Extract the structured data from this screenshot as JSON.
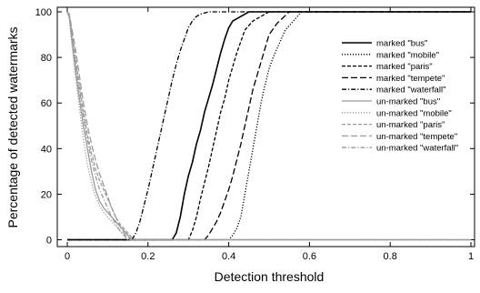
{
  "chart_data": {
    "type": "line",
    "title": "",
    "xlabel": "Detection threshold",
    "ylabel": "Percentage of detected watermarks",
    "xlim": [
      0,
      1
    ],
    "ylim": [
      -3,
      102
    ],
    "x_ticks": [
      0,
      0.2,
      0.4,
      0.6,
      0.8,
      1
    ],
    "x_tick_labels": [
      "0",
      "0.2",
      "0.4",
      "0.6",
      "0.8",
      "1"
    ],
    "y_ticks": [
      0,
      20,
      40,
      60,
      80,
      100
    ],
    "y_tick_labels": [
      "0",
      "20",
      "40",
      "60",
      "80",
      "100"
    ],
    "grid": false,
    "legend_position": "right",
    "series": [
      {
        "name": "marked \"bus\"",
        "color": "#000000",
        "dash": "solid",
        "x": [
          0,
          0.26,
          0.27,
          0.28,
          0.29,
          0.3,
          0.31,
          0.32,
          0.33,
          0.34,
          0.35,
          0.36,
          0.37,
          0.38,
          0.39,
          0.4,
          0.41,
          0.42,
          0.43,
          0.45,
          1.0
        ],
        "y": [
          0,
          0,
          3,
          10,
          20,
          28,
          34,
          42,
          48,
          56,
          62,
          68,
          75,
          82,
          88,
          93,
          96,
          97,
          98,
          100,
          100
        ]
      },
      {
        "name": "marked \"mobile\"",
        "color": "#000000",
        "dash": "dotted",
        "x": [
          0,
          0.4,
          0.41,
          0.42,
          0.43,
          0.44,
          0.45,
          0.46,
          0.47,
          0.48,
          0.49,
          0.5,
          0.51,
          0.52,
          0.53,
          0.54,
          0.56,
          0.58,
          1.0
        ],
        "y": [
          0,
          0,
          2,
          5,
          10,
          20,
          30,
          40,
          50,
          60,
          68,
          75,
          80,
          84,
          88,
          92,
          96,
          100,
          100
        ]
      },
      {
        "name": "marked \"paris\"",
        "color": "#000000",
        "dash": "dashed",
        "x": [
          0,
          0.3,
          0.31,
          0.32,
          0.33,
          0.34,
          0.35,
          0.36,
          0.37,
          0.38,
          0.39,
          0.4,
          0.41,
          0.42,
          0.43,
          0.44,
          0.46,
          0.48,
          0.5,
          1.0
        ],
        "y": [
          0,
          0,
          4,
          10,
          18,
          25,
          32,
          40,
          48,
          56,
          62,
          70,
          76,
          82,
          87,
          92,
          96,
          98,
          100,
          100
        ]
      },
      {
        "name": "marked \"tempete\"",
        "color": "#000000",
        "dash": "longdash",
        "x": [
          0,
          0.34,
          0.35,
          0.36,
          0.37,
          0.38,
          0.39,
          0.4,
          0.41,
          0.42,
          0.43,
          0.44,
          0.45,
          0.46,
          0.47,
          0.48,
          0.49,
          0.5,
          0.52,
          0.55,
          1.0
        ],
        "y": [
          0,
          0,
          2,
          5,
          8,
          12,
          17,
          22,
          28,
          35,
          42,
          50,
          58,
          66,
          72,
          78,
          84,
          90,
          95,
          100,
          100
        ]
      },
      {
        "name": "marked \"waterfall\"",
        "color": "#000000",
        "dash": "dashdot",
        "x": [
          0,
          0.16,
          0.17,
          0.18,
          0.19,
          0.2,
          0.21,
          0.22,
          0.23,
          0.24,
          0.25,
          0.26,
          0.27,
          0.28,
          0.29,
          0.3,
          0.31,
          0.32,
          0.33,
          0.35,
          1.0
        ],
        "y": [
          0,
          0,
          3,
          8,
          15,
          22,
          30,
          38,
          46,
          54,
          62,
          70,
          77,
          83,
          88,
          93,
          96,
          98,
          99,
          100,
          100
        ]
      },
      {
        "name": "un-marked \"bus\"",
        "color": "#9a9a9a",
        "dash": "solid",
        "x": [
          0,
          0.005,
          0.01,
          0.02,
          0.03,
          0.04,
          0.05,
          0.06,
          0.07,
          0.08,
          0.09,
          0.1,
          0.11,
          0.12,
          0.13,
          0.14,
          0.15,
          0.16,
          1.0
        ],
        "y": [
          100,
          98,
          90,
          75,
          62,
          50,
          40,
          30,
          22,
          17,
          14,
          12,
          10,
          8,
          6,
          4,
          2,
          0,
          0
        ]
      },
      {
        "name": "un-marked \"mobile\"",
        "color": "#9a9a9a",
        "dash": "dotted",
        "x": [
          0,
          0.005,
          0.01,
          0.02,
          0.03,
          0.04,
          0.05,
          0.06,
          0.07,
          0.08,
          0.09,
          0.1,
          0.11,
          0.12,
          0.13,
          0.14,
          0.15,
          1.0
        ],
        "y": [
          100,
          97,
          88,
          72,
          58,
          44,
          33,
          25,
          19,
          15,
          12,
          10,
          8,
          6,
          4,
          2,
          0,
          0
        ]
      },
      {
        "name": "un-marked \"paris\"",
        "color": "#9a9a9a",
        "dash": "dashed",
        "x": [
          0,
          0.005,
          0.01,
          0.02,
          0.03,
          0.04,
          0.05,
          0.06,
          0.07,
          0.08,
          0.09,
          0.1,
          0.11,
          0.12,
          0.13,
          0.14,
          0.15,
          0.16,
          0.17,
          1.0
        ],
        "y": [
          100,
          98,
          93,
          80,
          68,
          56,
          46,
          38,
          31,
          26,
          22,
          18,
          14,
          10,
          7,
          5,
          3,
          1,
          0,
          0
        ]
      },
      {
        "name": "un-marked \"tempete\"",
        "color": "#9a9a9a",
        "dash": "longdash",
        "x": [
          0,
          0.005,
          0.01,
          0.02,
          0.03,
          0.04,
          0.05,
          0.06,
          0.07,
          0.08,
          0.09,
          0.1,
          0.11,
          0.12,
          0.13,
          0.14,
          0.15,
          0.16,
          1.0
        ],
        "y": [
          100,
          99,
          94,
          84,
          72,
          60,
          50,
          42,
          35,
          29,
          24,
          19,
          14,
          10,
          6,
          3,
          1,
          0,
          0
        ]
      },
      {
        "name": "un-marked \"waterfall\"",
        "color": "#9a9a9a",
        "dash": "dashdot",
        "x": [
          0,
          0.005,
          0.01,
          0.02,
          0.03,
          0.04,
          0.05,
          0.06,
          0.07,
          0.08,
          0.09,
          0.1,
          0.11,
          0.12,
          0.13,
          0.14,
          0.15,
          1.0
        ],
        "y": [
          100,
          98,
          92,
          78,
          66,
          54,
          44,
          35,
          28,
          22,
          18,
          14,
          10,
          7,
          4,
          2,
          0,
          0
        ]
      }
    ]
  }
}
